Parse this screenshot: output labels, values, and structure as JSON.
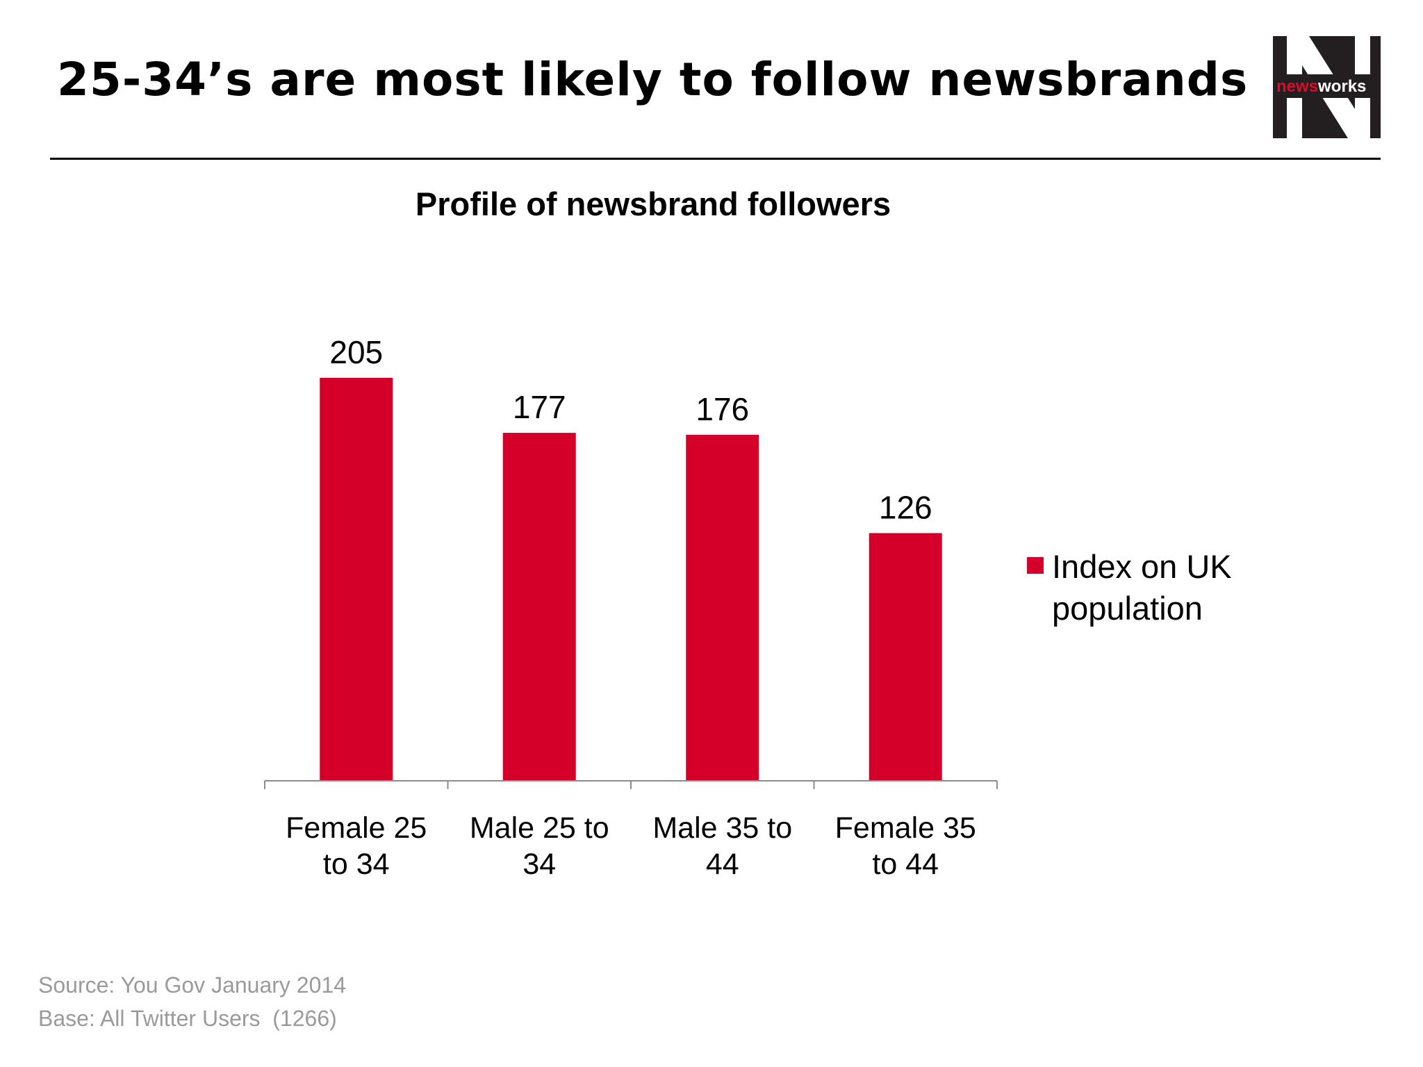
{
  "header": {
    "title": "25-34’s are most likely to follow newsbrands",
    "logo": {
      "icon": "newsworks-logo",
      "text_red": "news",
      "text_white": "works",
      "letter": "N"
    }
  },
  "chart_data": {
    "type": "bar",
    "title": "Profile of newsbrand followers",
    "categories": [
      "Female 25 to 34",
      "Male 25 to 34",
      "Male 35 to 44",
      "Female 35 to 44"
    ],
    "category_lines": [
      [
        "Female 25",
        "to 34"
      ],
      [
        "Male 25 to",
        "34"
      ],
      [
        "Male 35 to",
        "44"
      ],
      [
        "Female 35",
        "to 44"
      ]
    ],
    "series": [
      {
        "name": "Index on UK population",
        "values": [
          205,
          177,
          176,
          126
        ],
        "color": "#d5002a"
      }
    ],
    "data_labels": true,
    "ylim": [
      0,
      240
    ],
    "grid": false,
    "legend": {
      "position": "right",
      "lines": [
        "Index on UK",
        "population"
      ]
    }
  },
  "footer": {
    "source": "Source: You Gov January 2014",
    "base": "Base: All Twitter Users  (1266)"
  }
}
